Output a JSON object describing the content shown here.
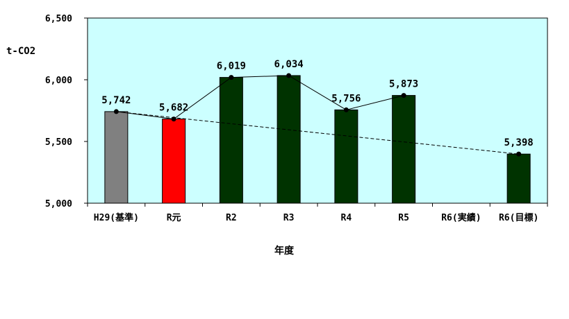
{
  "chart_data": {
    "type": "bar",
    "title": "",
    "ylabel": "t-CO2",
    "xlabel": "年度",
    "categories": [
      "H29(基準)",
      "R元",
      "R2",
      "R3",
      "R4",
      "R5",
      "R6(実績)",
      "R6(目標)"
    ],
    "values": [
      5742,
      5682,
      6019,
      6034,
      5756,
      5873,
      null,
      5398
    ],
    "data_labels": [
      "5,742",
      "5,682",
      "6,019",
      "6,034",
      "5,756",
      "5,873",
      "",
      "5,398"
    ],
    "ylim": [
      5000,
      6500
    ],
    "yticks": [
      5000,
      5500,
      6000,
      6500
    ],
    "ytick_labels": [
      "5,000",
      "5,500",
      "6,000",
      "6,500"
    ],
    "bar_colors": [
      "#808080",
      "#ff0000",
      "#003300",
      "#003300",
      "#003300",
      "#003300",
      "#003300",
      "#003300"
    ],
    "plot_background": "#ccffff",
    "lines": [
      {
        "style": "solid",
        "points": [
          [
            0,
            5742
          ],
          [
            1,
            5682
          ],
          [
            2,
            6019
          ],
          [
            3,
            6034
          ],
          [
            4,
            5756
          ],
          [
            5,
            5873
          ]
        ]
      },
      {
        "style": "dashed",
        "points": [
          [
            0,
            5742
          ],
          [
            7,
            5398
          ]
        ]
      }
    ],
    "grid": false,
    "legend": "none"
  }
}
